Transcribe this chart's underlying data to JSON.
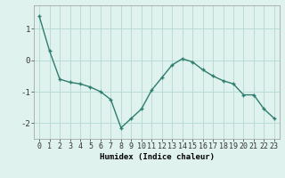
{
  "x": [
    0,
    1,
    2,
    3,
    4,
    5,
    6,
    7,
    8,
    9,
    10,
    11,
    12,
    13,
    14,
    15,
    16,
    17,
    18,
    19,
    20,
    21,
    22,
    23
  ],
  "y": [
    1.4,
    0.3,
    -0.6,
    -0.7,
    -0.75,
    -0.85,
    -1.0,
    -1.25,
    -2.15,
    -1.85,
    -1.55,
    -0.95,
    -0.55,
    -0.15,
    0.05,
    -0.05,
    -0.3,
    -0.5,
    -0.65,
    -0.75,
    -1.1,
    -1.1,
    -1.55,
    -1.85
  ],
  "xlabel": "Humidex (Indice chaleur)",
  "line_color": "#2e7d6e",
  "marker": "+",
  "bg_color": "#dff2ee",
  "grid_color": "#b8ddd6",
  "xlim": [
    -0.5,
    23.5
  ],
  "ylim": [
    -2.5,
    1.75
  ],
  "yticks": [
    -2,
    -1,
    0,
    1
  ],
  "xticks": [
    0,
    1,
    2,
    3,
    4,
    5,
    6,
    7,
    8,
    9,
    10,
    11,
    12,
    13,
    14,
    15,
    16,
    17,
    18,
    19,
    20,
    21,
    22,
    23
  ],
  "xtick_labels": [
    "0",
    "1",
    "2",
    "3",
    "4",
    "5",
    "6",
    "7",
    "8",
    "9",
    "10",
    "11",
    "12",
    "13",
    "14",
    "15",
    "16",
    "17",
    "18",
    "19",
    "20",
    "21",
    "22",
    "23"
  ],
  "tick_fontsize": 6,
  "xlabel_fontsize": 6.5,
  "markersize": 3.5,
  "linewidth": 1.0
}
